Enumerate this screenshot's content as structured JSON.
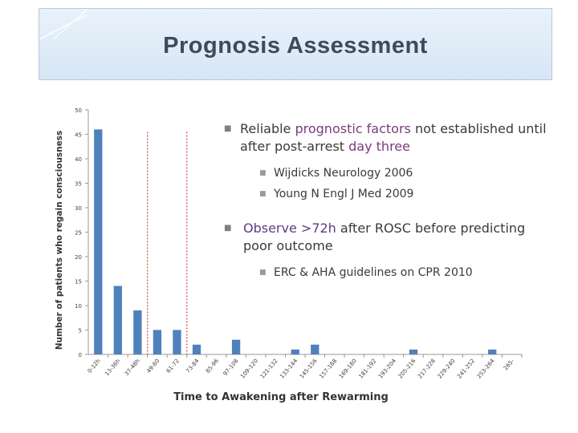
{
  "slide": {
    "title": "Prognosis Assessment"
  },
  "bullets": [
    {
      "level": 1,
      "parts": [
        {
          "text": "Reliable ",
          "emph": false
        },
        {
          "text": "prognostic factors",
          "emph": true
        },
        {
          "text": " not established until after post-arrest ",
          "emph": false
        },
        {
          "text": "day three",
          "emph": true
        }
      ]
    },
    {
      "level": 2,
      "parts": [
        {
          "text": "Wijdicks Neurology 2006",
          "emph": false
        }
      ]
    },
    {
      "level": 2,
      "parts": [
        {
          "text": "Young N Engl J Med 2009",
          "emph": false
        }
      ]
    },
    {
      "level": 1,
      "parts": [
        {
          "text": "Observe >72h",
          "emph": true
        },
        {
          "text": " after ROSC before predicting poor outcome",
          "emph": false
        }
      ]
    },
    {
      "level": 2,
      "parts": [
        {
          "text": "ERC & AHA guidelines on CPR 2010",
          "emph": false
        }
      ]
    }
  ],
  "chart_data": {
    "type": "bar",
    "xlabel": "Time to Awakening after Rewarming",
    "ylabel": "Number of patients who regain consciousness",
    "ylim": [
      0,
      50
    ],
    "yticks": [
      0,
      5,
      10,
      15,
      20,
      25,
      30,
      35,
      40,
      45,
      50
    ],
    "categories": [
      "0-12h",
      "13-36h",
      "37-48h",
      "49-60",
      "61-72",
      "73-84",
      "85-96",
      "97-108",
      "109-120",
      "121-132",
      "133-144",
      "145-156",
      "157-168",
      "169-180",
      "181-192",
      "193-204",
      "205-216",
      "217-228",
      "229-240",
      "241-252",
      "253-264",
      "265-"
    ],
    "values": [
      46,
      14,
      9,
      5,
      5,
      2,
      0,
      3,
      0,
      0,
      1,
      2,
      0,
      0,
      0,
      0,
      1,
      0,
      0,
      0,
      1,
      0
    ],
    "reference_lines_after_categories": [
      "37-48h",
      "61-72"
    ],
    "grid": false,
    "colors": {
      "bar": "#4f81bd",
      "reference_line": "#d9534f",
      "axis": "#9a9a9a",
      "text": "#404040"
    }
  }
}
